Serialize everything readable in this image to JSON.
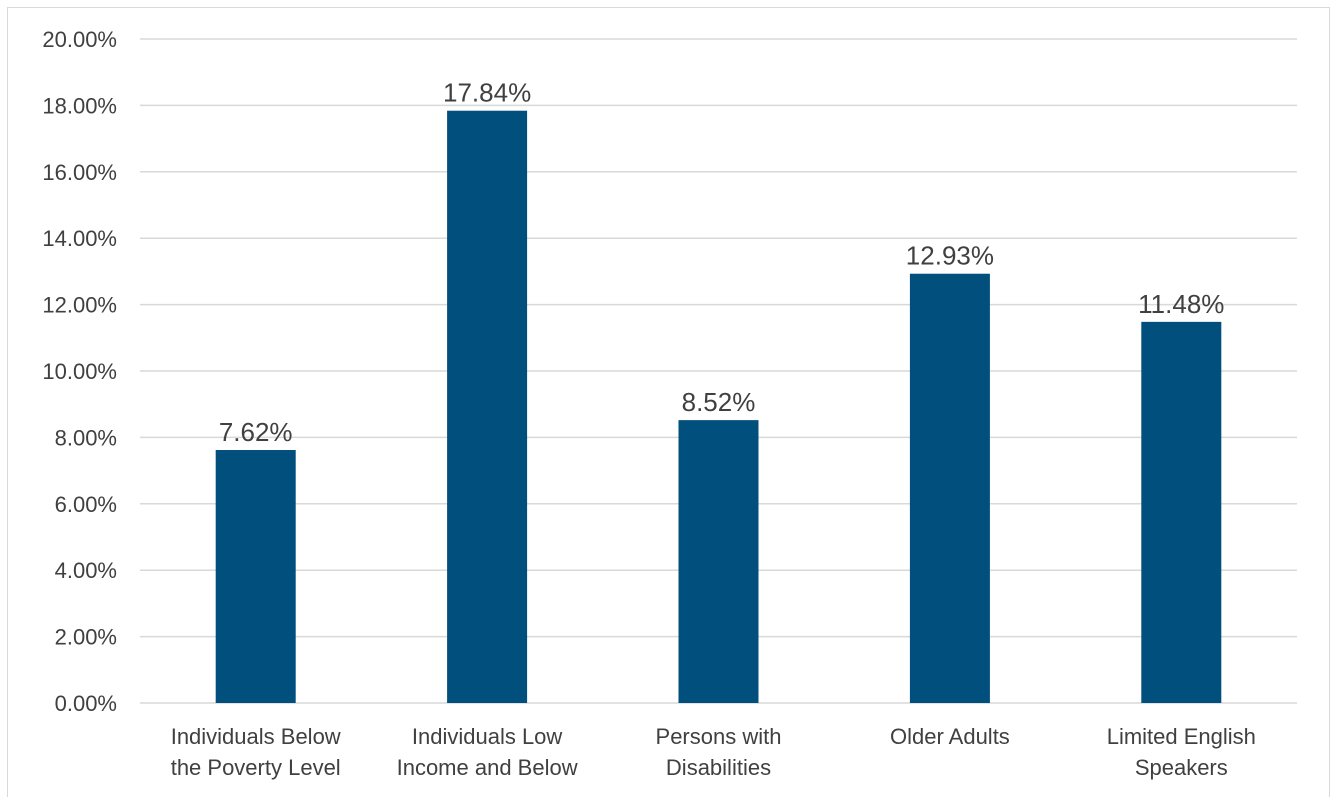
{
  "chart_data": {
    "type": "bar",
    "title": "",
    "xlabel": "",
    "ylabel": "",
    "categories": [
      [
        "Individuals Below",
        "the Poverty Level"
      ],
      [
        "Individuals Low",
        "Income and Below"
      ],
      [
        "Persons with",
        "Disabilities"
      ],
      [
        "Older Adults"
      ],
      [
        "Limited English",
        "Speakers"
      ]
    ],
    "values": [
      7.62,
      17.84,
      8.52,
      12.93,
      11.48
    ],
    "data_labels": [
      "7.62%",
      "17.84%",
      "8.52%",
      "12.93%",
      "11.48%"
    ],
    "ylim": [
      0,
      20
    ],
    "yticks": [
      0,
      2,
      4,
      6,
      8,
      10,
      12,
      14,
      16,
      18,
      20
    ],
    "ytick_labels": [
      "0.00%",
      "2.00%",
      "4.00%",
      "6.00%",
      "8.00%",
      "10.00%",
      "12.00%",
      "14.00%",
      "16.00%",
      "18.00%",
      "20.00%"
    ],
    "grid": true,
    "legend": "none",
    "colors": {
      "bar": "#004f7c",
      "grid": "#d9d9d9",
      "text": "#404040"
    }
  }
}
